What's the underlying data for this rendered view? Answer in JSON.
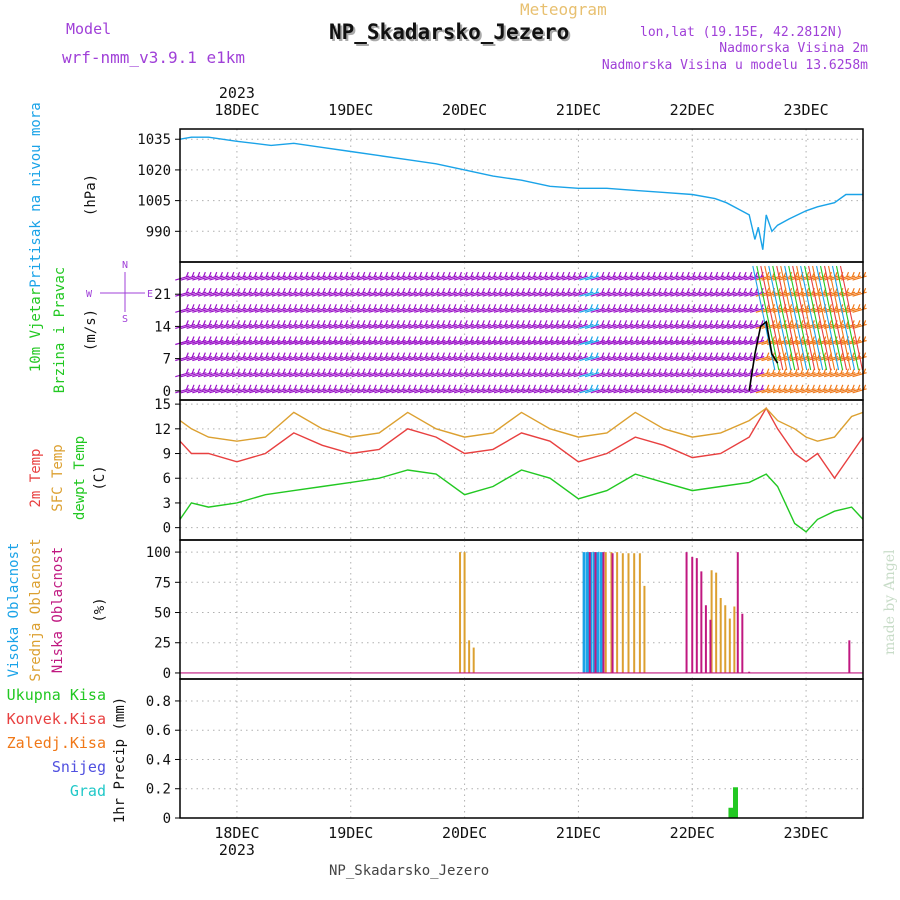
{
  "header": {
    "model_label": "Model",
    "model_name": "wrf-nmm_v3.9.1  e1km",
    "product": "Meteogram",
    "station": "NP_Skadarsko_Jezero",
    "lonlat": "lon,lat (19.15E, 42.2812N)",
    "altitude": "Nadmorska Visina 2m",
    "model_altitude": "Nadmorska Visina u modelu 13.6258m",
    "watermark": "made by Angel",
    "footer_station": "NP_Skadarsko_Jezero"
  },
  "colors": {
    "pressure": "#1aa3e8",
    "wind_barb": "#9b10c8",
    "wind_speed_line": "#000000",
    "t2m": "#e84040",
    "sfc_temp": "#dca030",
    "dewpoint": "#22c822",
    "cloud_high": "#1aa3e8",
    "cloud_mid": "#dca030",
    "cloud_low": "#c01880",
    "precip_total": "#22c822",
    "precip_conv": "#e84040",
    "precip_frz": "#f07818",
    "precip_snow": "#5050e0",
    "precip_grad": "#20c8c8",
    "label_purple": "#a040d8"
  },
  "chart_data": [
    {
      "type": "line",
      "panel": "pressure",
      "ylabel": [
        "Pritisak na nivou mora",
        "(hPa)"
      ],
      "yticks": [
        990,
        1005,
        1020,
        1035
      ],
      "ylim": [
        975,
        1040
      ],
      "xlim": [
        17.5,
        23.5
      ],
      "top_year": "2023",
      "bottom_year": "2023",
      "day_labels": [
        "18DEC",
        "19DEC",
        "20DEC",
        "21DEC",
        "22DEC",
        "23DEC"
      ],
      "day_positions": [
        18,
        19,
        20,
        21,
        22,
        23
      ],
      "grid": true,
      "x": [
        17.5,
        17.6,
        17.75,
        18.0,
        18.3,
        18.5,
        18.75,
        19.0,
        19.25,
        19.5,
        19.75,
        20.0,
        20.25,
        20.5,
        20.75,
        21.0,
        21.25,
        21.5,
        21.75,
        22.0,
        22.2,
        22.3,
        22.4,
        22.5,
        22.55,
        22.58,
        22.62,
        22.65,
        22.7,
        22.75,
        22.85,
        23.0,
        23.1,
        23.25,
        23.35,
        23.5
      ],
      "series": [
        {
          "values": [
            1035,
            1036,
            1036,
            1034,
            1032,
            1033,
            1031,
            1029,
            1027,
            1025,
            1023,
            1020,
            1017,
            1015,
            1012,
            1011,
            1011,
            1010,
            1009,
            1008,
            1006,
            1004,
            1001,
            998,
            986,
            992,
            981,
            998,
            990,
            993,
            996,
            1000,
            1002,
            1004,
            1008,
            1008
          ]
        }
      ]
    },
    {
      "type": "barbs",
      "panel": "wind",
      "ylabel": [
        "10m Vjetar",
        "Brzina i Pravac",
        "(m/s)"
      ],
      "direction_key": [
        "N",
        "S",
        "W",
        "E"
      ],
      "yticks": [
        0,
        7,
        14,
        21
      ],
      "ylim": [
        -2,
        28
      ],
      "xlim": [
        17.5,
        23.5
      ],
      "barb_levels": [
        0,
        3.5,
        7,
        10.5,
        14,
        17.5,
        21,
        24.5
      ],
      "barb_color_segments": [
        {
          "from": 17.5,
          "to": 21.05,
          "color": "#9b10c8"
        },
        {
          "from": 21.05,
          "to": 21.15,
          "color": "#1aa3e8"
        },
        {
          "from": 21.15,
          "to": 22.62,
          "color": "#9b10c8"
        },
        {
          "from": 22.62,
          "to": 23.5,
          "color": "#f07818"
        }
      ],
      "speed_x": [
        22.5,
        22.55,
        22.6,
        22.65,
        22.7,
        22.75
      ],
      "speed_values": [
        0,
        8,
        14,
        15,
        8,
        6
      ]
    },
    {
      "type": "line",
      "panel": "temperature",
      "ylabel": [
        "2m Temp",
        "SFC Temp",
        "dewpt Temp",
        "(C)"
      ],
      "yticks": [
        0,
        3,
        6,
        9,
        12,
        15
      ],
      "ylim": [
        -1.5,
        15.5
      ],
      "xlim": [
        17.5,
        23.5
      ],
      "x": [
        17.5,
        17.6,
        17.75,
        18.0,
        18.25,
        18.5,
        18.75,
        19.0,
        19.25,
        19.5,
        19.75,
        20.0,
        20.25,
        20.5,
        20.75,
        21.0,
        21.25,
        21.5,
        21.75,
        22.0,
        22.25,
        22.5,
        22.65,
        22.75,
        22.9,
        23.0,
        23.1,
        23.25,
        23.4,
        23.5
      ],
      "series": [
        {
          "name": "2m Temp",
          "values": [
            10.5,
            9.0,
            9.0,
            8.0,
            9.0,
            11.5,
            10.0,
            9.0,
            9.5,
            12.0,
            11.0,
            9.0,
            9.5,
            11.5,
            10.5,
            8.0,
            9.0,
            11.0,
            10.0,
            8.5,
            9.0,
            11.0,
            14.5,
            12.0,
            9.0,
            8.0,
            9.0,
            6.0,
            9.0,
            11.0
          ]
        },
        {
          "name": "SFC Temp",
          "values": [
            13.0,
            12.0,
            11.0,
            10.5,
            11.0,
            14.0,
            12.0,
            11.0,
            11.5,
            14.0,
            12.0,
            11.0,
            11.5,
            14.0,
            12.0,
            11.0,
            11.5,
            14.0,
            12.0,
            11.0,
            11.5,
            13.0,
            14.5,
            13.0,
            12.0,
            11.0,
            10.5,
            11.0,
            13.5,
            14.0
          ]
        },
        {
          "name": "dewpt Temp",
          "values": [
            1.0,
            3.0,
            2.5,
            3.0,
            4.0,
            4.5,
            5.0,
            5.5,
            6.0,
            7.0,
            6.5,
            4.0,
            5.0,
            7.0,
            6.0,
            3.5,
            4.5,
            6.5,
            5.5,
            4.5,
            5.0,
            5.5,
            6.5,
            5.0,
            0.5,
            -0.5,
            1.0,
            2.0,
            2.5,
            1.0
          ]
        }
      ]
    },
    {
      "type": "bar",
      "panel": "clouds",
      "ylabel": [
        "Visoka Oblacnost",
        "Srednja Oblacnost",
        "Niska Oblacnost",
        "(%)"
      ],
      "yticks": [
        0,
        25,
        50,
        75,
        100
      ],
      "ylim": [
        -5,
        110
      ],
      "xlim": [
        17.5,
        23.5
      ],
      "series": [
        {
          "name": "Visoka Oblacnost",
          "x": [
            21.05,
            21.08,
            21.11,
            21.14,
            21.17,
            21.2
          ],
          "values": [
            100,
            100,
            100,
            100,
            100,
            100
          ]
        },
        {
          "name": "Srednja Oblacnost",
          "x": [
            19.96,
            20.0,
            20.04,
            20.08,
            21.24,
            21.29,
            21.34,
            21.39,
            21.44,
            21.49,
            21.54,
            21.58,
            22.17,
            22.21,
            22.25,
            22.29,
            22.33,
            22.37
          ],
          "values": [
            100,
            100,
            27,
            21,
            100,
            100,
            100,
            99,
            99,
            99,
            99,
            72,
            85,
            83,
            62,
            56,
            45,
            55
          ]
        },
        {
          "name": "Niska Oblacnost",
          "x": [
            21.1,
            21.15,
            21.22,
            21.3,
            21.95,
            22.0,
            22.04,
            22.08,
            22.12,
            22.16,
            22.4,
            22.44,
            22.5,
            23.38
          ],
          "values": [
            100,
            100,
            100,
            99,
            100,
            96,
            95,
            84,
            56,
            44,
            100,
            49,
            1,
            27
          ]
        }
      ]
    },
    {
      "type": "bar",
      "panel": "precip",
      "ylabel": [
        "1hr Precip (mm)"
      ],
      "legend": [
        "Ukupna Kisa",
        "Konvek.Kisa",
        "Zaledj.Kisa",
        "Snijeg",
        "Grad"
      ],
      "yticks": [
        0,
        0.2,
        0.4,
        0.6,
        0.8
      ],
      "ylim": [
        0,
        0.95
      ],
      "xlim": [
        17.5,
        23.5
      ],
      "series": [
        {
          "name": "Ukupna Kisa",
          "x": [
            22.34,
            22.38
          ],
          "values": [
            0.07,
            0.21
          ]
        }
      ]
    }
  ]
}
